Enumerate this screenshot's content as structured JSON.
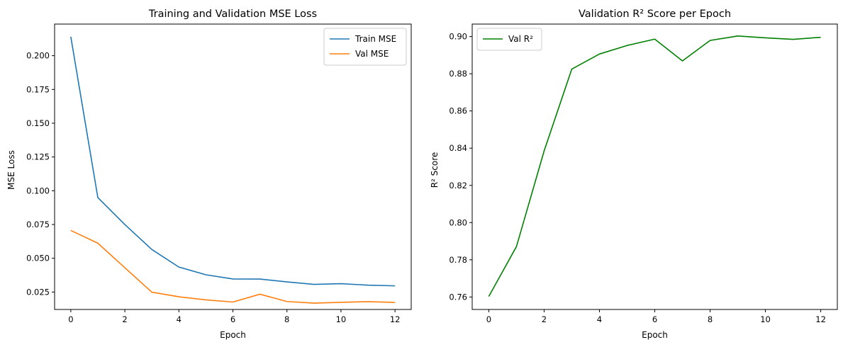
{
  "chart_data": [
    {
      "type": "line",
      "title": "Training and Validation MSE Loss",
      "xlabel": "Epoch",
      "ylabel": "MSE Loss",
      "xlim": [
        -0.6,
        12.6
      ],
      "ylim": [
        0.0121,
        0.2234
      ],
      "xticks": [
        0,
        2,
        4,
        6,
        8,
        10,
        12
      ],
      "xtick_labels": [
        "0",
        "2",
        "4",
        "6",
        "8",
        "10",
        "12"
      ],
      "yticks": [
        0.025,
        0.05,
        0.075,
        0.1,
        0.125,
        0.15,
        0.175,
        0.2
      ],
      "ytick_labels": [
        "0.025",
        "0.050",
        "0.075",
        "0.100",
        "0.125",
        "0.150",
        "0.175",
        "0.200"
      ],
      "grid": false,
      "legend_position": "top-right",
      "x": [
        0,
        1,
        2,
        3,
        4,
        5,
        6,
        7,
        8,
        9,
        10,
        11,
        12
      ],
      "series": [
        {
          "name": "Train MSE",
          "color": "#1f77b4",
          "values": [
            0.214,
            0.095,
            0.075,
            0.0565,
            0.0435,
            0.0378,
            0.0347,
            0.0346,
            0.0325,
            0.0307,
            0.0312,
            0.0301,
            0.0296
          ]
        },
        {
          "name": "Val MSE",
          "color": "#ff7f0e",
          "values": [
            0.0706,
            0.0612,
            0.043,
            0.0249,
            0.0215,
            0.0192,
            0.0176,
            0.0234,
            0.018,
            0.0168,
            0.0174,
            0.0179,
            0.0173
          ]
        }
      ]
    },
    {
      "type": "line",
      "title": "Validation R² Score per Epoch",
      "xlabel": "Epoch",
      "ylabel": "R² Score",
      "xlim": [
        -0.6,
        12.6
      ],
      "ylim": [
        0.7533,
        0.9067
      ],
      "xticks": [
        0,
        2,
        4,
        6,
        8,
        10,
        12
      ],
      "xtick_labels": [
        "0",
        "2",
        "4",
        "6",
        "8",
        "10",
        "12"
      ],
      "yticks": [
        0.76,
        0.78,
        0.8,
        0.82,
        0.84,
        0.86,
        0.88,
        0.9
      ],
      "ytick_labels": [
        "0.76",
        "0.78",
        "0.80",
        "0.82",
        "0.84",
        "0.86",
        "0.88",
        "0.90"
      ],
      "grid": false,
      "legend_position": "top-left",
      "x": [
        0,
        1,
        2,
        3,
        4,
        5,
        6,
        7,
        8,
        9,
        10,
        11,
        12
      ],
      "series": [
        {
          "name": "Val R²",
          "color": "#008000",
          "values": [
            0.7603,
            0.7871,
            0.8385,
            0.8825,
            0.8906,
            0.8952,
            0.8986,
            0.8869,
            0.8979,
            0.9003,
            0.8993,
            0.8985,
            0.8996
          ]
        }
      ]
    }
  ]
}
